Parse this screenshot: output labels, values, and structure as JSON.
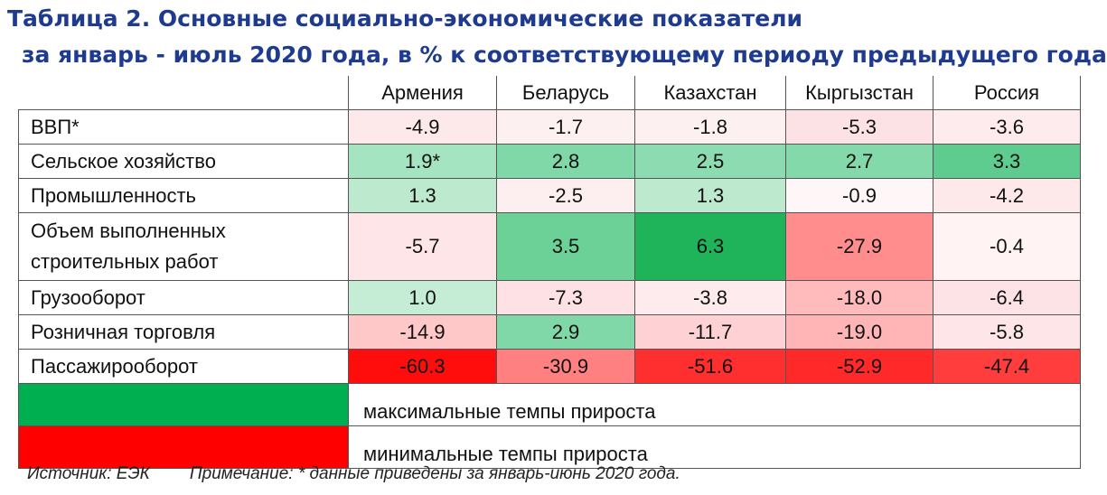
{
  "title": {
    "line1": "Таблица 2. Основные социально-экономические показатели",
    "line2": "за январь - июль 2020 года, в % к соответствующему периоду предыдущего года"
  },
  "columns": [
    "Армения",
    "Беларусь",
    "Казахстан",
    "Кыргызстан",
    "Россия"
  ],
  "rows": [
    {
      "label": "ВВП*",
      "values": [
        "-4.9",
        "-1.7",
        "-1.8",
        "-5.3",
        "-3.6"
      ],
      "colors": [
        "#fde8ea",
        "#fdf0f1",
        "#fdf0f1",
        "#fde2e5",
        "#fdebed"
      ]
    },
    {
      "label": "Сельское хозяйство",
      "values": [
        "1.9*",
        "2.8",
        "2.5",
        "2.7",
        "3.3"
      ],
      "colors": [
        "#a4e4c0",
        "#80d7a8",
        "#8ddcb1",
        "#84d9ab",
        "#5fcc8f"
      ]
    },
    {
      "label": "Промышленность",
      "values": [
        "1.3",
        "-2.5",
        "1.3",
        "-0.9",
        "-4.2"
      ],
      "colors": [
        "#bde9cf",
        "#fdeff0",
        "#bde9cf",
        "#fef6f7",
        "#fde8ea"
      ]
    },
    {
      "label_lines": [
        "Объем выполненных",
        "строительных работ"
      ],
      "values": [
        "-5.7",
        "3.5",
        "6.3",
        "-27.9",
        "-0.4"
      ],
      "colors": [
        "#fde5e8",
        "#6cd196",
        "#1fb35a",
        "#ff8d8d",
        "#fff3f4"
      ]
    },
    {
      "label": "Грузооборот",
      "values": [
        "1.0",
        "-7.3",
        "-3.8",
        "-18.0",
        "-6.4"
      ],
      "colors": [
        "#c5ecd5",
        "#fde1e4",
        "#fdebed",
        "#ffbbbc",
        "#fde3e6"
      ]
    },
    {
      "label": "Розничная торговля",
      "values": [
        "-14.9",
        "2.9",
        "-11.7",
        "-19.0",
        "-5.8"
      ],
      "colors": [
        "#fec7c8",
        "#80d7a8",
        "#fed2d4",
        "#ffb5b6",
        "#fde5e8"
      ]
    },
    {
      "label": "Пассажирооборот",
      "values": [
        "-60.3",
        "-30.9",
        "-51.6",
        "-52.9",
        "-47.4"
      ],
      "colors": [
        "#ff0d0d",
        "#ff8080",
        "#ff2f2f",
        "#ff2929",
        "#ff3d3d"
      ]
    }
  ],
  "legend": {
    "max_color": "#00b050",
    "max_text": "максимальные темпы прироста",
    "min_color": "#ff0000",
    "min_text": "минимальные темпы прироста"
  },
  "footer": {
    "source": "Источник: ЕЭК",
    "note": "Примечание: * данные приведены за январь-июнь 2020 года."
  }
}
